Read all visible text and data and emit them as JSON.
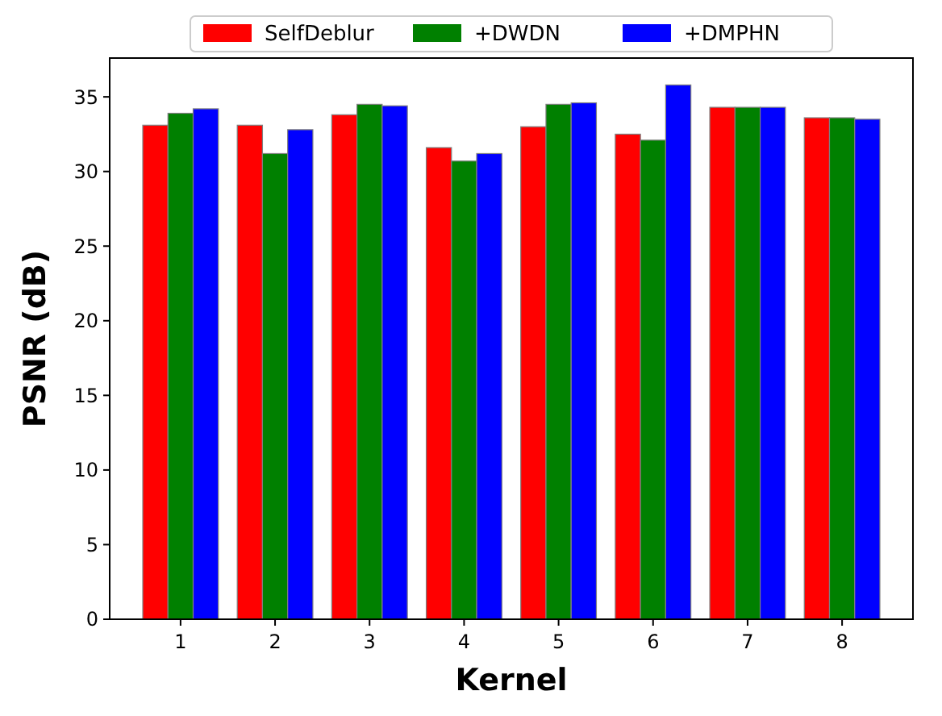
{
  "chart_data": {
    "type": "bar",
    "xlabel": "Kernel",
    "ylabel": "PSNR (dB)",
    "categories": [
      "1",
      "2",
      "3",
      "4",
      "5",
      "6",
      "7",
      "8"
    ],
    "series": [
      {
        "name": "SelfDeblur",
        "color": "#ff0000",
        "values": [
          33.1,
          33.1,
          33.8,
          31.6,
          33.0,
          32.5,
          34.3,
          33.6
        ]
      },
      {
        "name": "+DWDN",
        "color": "#008000",
        "values": [
          33.9,
          31.2,
          34.5,
          30.7,
          34.5,
          32.1,
          34.3,
          33.6
        ]
      },
      {
        "name": "+DMPHN",
        "color": "#0000ff",
        "values": [
          34.2,
          32.8,
          34.4,
          31.2,
          34.6,
          35.8,
          34.3,
          33.5
        ]
      }
    ],
    "ylim": [
      0,
      37.6
    ],
    "yticks": [
      0,
      5,
      10,
      15,
      20,
      25,
      30,
      35
    ],
    "legend": "top"
  }
}
